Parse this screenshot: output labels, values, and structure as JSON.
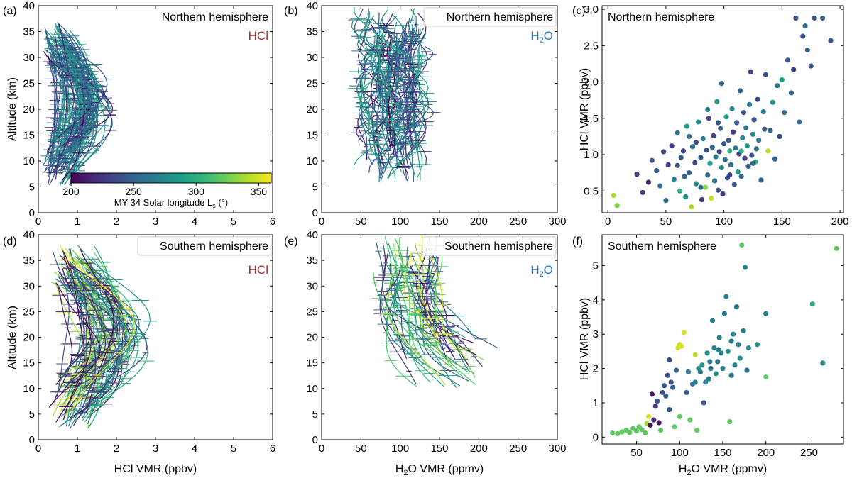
{
  "figure": {
    "colorbar": {
      "label": "MY 34 Solar longitude L",
      "label_sub": "s",
      "label_unit": "(°)",
      "ticks": [
        200,
        250,
        300,
        350
      ],
      "range": [
        200,
        360
      ],
      "colormap": "viridis",
      "stops": [
        "#440154",
        "#482878",
        "#3e4989",
        "#31688e",
        "#26828e",
        "#1f9e89",
        "#35b779",
        "#6ece58",
        "#b5de2b",
        "#fde725"
      ]
    },
    "colors": {
      "hcl_label": "#a52a2a",
      "h2o_label": "#1f77b4"
    }
  },
  "chart_data": [
    {
      "id": "a",
      "type": "line",
      "panel_label": "(a)",
      "region": "Northern hemisphere",
      "species": "HCl",
      "xlabel": "",
      "ylabel": "Altitude (km)",
      "xlim": [
        0,
        6
      ],
      "ylim": [
        0,
        40
      ],
      "xticks": [
        0,
        1,
        2,
        3,
        4,
        5,
        6
      ],
      "yticks": [
        0,
        5,
        10,
        15,
        20,
        25,
        30,
        35,
        40
      ],
      "gen": {
        "n": 70,
        "xc": 1.5,
        "xspread": 1.9,
        "ymin": 5,
        "ymax": 37,
        "shape": "bulge",
        "ls": [
          200,
          300
        ],
        "seed": 11
      }
    },
    {
      "id": "b",
      "type": "line",
      "panel_label": "(b)",
      "region": "Northern hemisphere",
      "species": "H2O",
      "xlabel": "",
      "ylabel": "",
      "xlim": [
        0,
        300
      ],
      "ylim": [
        0,
        40
      ],
      "xticks": [
        0,
        50,
        100,
        150,
        200,
        250,
        300
      ],
      "yticks": [
        0,
        5,
        10,
        15,
        20,
        25,
        30,
        35,
        40
      ],
      "gen": {
        "n": 60,
        "xc": 90,
        "xspread": 75,
        "ymin": 6,
        "ymax": 40,
        "shape": "wiggle",
        "ls": [
          200,
          300
        ],
        "seed": 23
      }
    },
    {
      "id": "c",
      "type": "scatter",
      "panel_label": "(c)",
      "region": "Northern hemisphere",
      "xlabel": "",
      "ylabel": "HCl VMR (ppbv)",
      "xlim": [
        -5,
        203
      ],
      "ylim": [
        0.2,
        3.05
      ],
      "xticks": [
        0,
        50,
        100,
        150,
        200
      ],
      "yticks": [
        0.5,
        1.0,
        1.5,
        2.0,
        2.5,
        3.0
      ],
      "points": [
        [
          5,
          0.44,
          340
        ],
        [
          8,
          0.3,
          330
        ],
        [
          25,
          0.73,
          225
        ],
        [
          30,
          0.48,
          230
        ],
        [
          35,
          0.62,
          215
        ],
        [
          38,
          0.92,
          240
        ],
        [
          42,
          0.78,
          245
        ],
        [
          45,
          0.57,
          260
        ],
        [
          48,
          1.04,
          235
        ],
        [
          50,
          0.37,
          255
        ],
        [
          52,
          0.86,
          225
        ],
        [
          55,
          1.12,
          230
        ],
        [
          57,
          0.66,
          270
        ],
        [
          60,
          1.3,
          260
        ],
        [
          62,
          0.5,
          300
        ],
        [
          63,
          0.96,
          245
        ],
        [
          65,
          1.05,
          230
        ],
        [
          67,
          0.42,
          280
        ],
        [
          68,
          1.39,
          290
        ],
        [
          70,
          0.75,
          250
        ],
        [
          72,
          0.28,
          340
        ],
        [
          73,
          1.11,
          260
        ],
        [
          75,
          0.89,
          235
        ],
        [
          76,
          0.6,
          275
        ],
        [
          78,
          1.45,
          280
        ],
        [
          80,
          0.96,
          245
        ],
        [
          81,
          0.38,
          225
        ],
        [
          82,
          1.22,
          265
        ],
        [
          84,
          0.55,
          330
        ],
        [
          85,
          1.06,
          240
        ],
        [
          86,
          0.72,
          255
        ],
        [
          87,
          1.5,
          230
        ],
        [
          88,
          0.88,
          285
        ],
        [
          89,
          0.4,
          345
        ],
        [
          90,
          1.1,
          250
        ],
        [
          91,
          1.26,
          235
        ],
        [
          92,
          0.64,
          260
        ],
        [
          93,
          0.97,
          270
        ],
        [
          94,
          1.73,
          285
        ],
        [
          95,
          0.51,
          240
        ],
        [
          96,
          1.04,
          230
        ],
        [
          97,
          1.36,
          250
        ],
        [
          98,
          0.82,
          275
        ],
        [
          99,
          0.46,
          225
        ],
        [
          100,
          1.15,
          245
        ],
        [
          101,
          0.93,
          260
        ],
        [
          102,
          1.52,
          290
        ],
        [
          103,
          0.68,
          235
        ],
        [
          104,
          1.2,
          240
        ],
        [
          105,
          1.05,
          300
        ],
        [
          106,
          0.86,
          255
        ],
        [
          107,
          1.63,
          270
        ],
        [
          108,
          1.31,
          230
        ],
        [
          109,
          0.59,
          245
        ],
        [
          110,
          1.09,
          265
        ],
        [
          111,
          1.44,
          240
        ],
        [
          112,
          0.76,
          280
        ],
        [
          113,
          1.01,
          235
        ],
        [
          114,
          1.88,
          250
        ],
        [
          115,
          0.7,
          255
        ],
        [
          116,
          1.23,
          270
        ],
        [
          117,
          1.58,
          240
        ],
        [
          118,
          0.95,
          230
        ],
        [
          119,
          1.37,
          260
        ],
        [
          120,
          1.12,
          285
        ],
        [
          121,
          0.84,
          250
        ],
        [
          122,
          1.69,
          265
        ],
        [
          123,
          2.14,
          230
        ],
        [
          124,
          0.99,
          245
        ],
        [
          125,
          1.28,
          275
        ],
        [
          126,
          1.48,
          240
        ],
        [
          127,
          0.9,
          300
        ],
        [
          128,
          1.08,
          255
        ],
        [
          129,
          1.76,
          235
        ],
        [
          130,
          1.2,
          260
        ],
        [
          132,
          0.65,
          250
        ],
        [
          134,
          1.59,
          270
        ],
        [
          136,
          2.1,
          240
        ],
        [
          138,
          1.05,
          345
        ],
        [
          140,
          1.33,
          255
        ],
        [
          142,
          1.72,
          280
        ],
        [
          144,
          0.94,
          250
        ],
        [
          146,
          1.95,
          265
        ],
        [
          148,
          1.25,
          240
        ],
        [
          150,
          2.03,
          290
        ],
        [
          152,
          1.58,
          255
        ],
        [
          155,
          2.3,
          245
        ],
        [
          158,
          1.85,
          250
        ],
        [
          160,
          2.17,
          230
        ],
        [
          162,
          2.88,
          240
        ],
        [
          165,
          1.45,
          260
        ],
        [
          168,
          2.63,
          245
        ],
        [
          170,
          2.77,
          255
        ],
        [
          172,
          2.44,
          250
        ],
        [
          175,
          2.22,
          245
        ],
        [
          178,
          2.88,
          240
        ],
        [
          185,
          2.88,
          250
        ],
        [
          192,
          2.57,
          245
        ],
        [
          60,
          0.85,
          240
        ],
        [
          70,
          1.25,
          255
        ],
        [
          80,
          0.55,
          260
        ],
        [
          95,
          1.44,
          240
        ],
        [
          105,
          0.72,
          235
        ],
        [
          115,
          1.05,
          300
        ],
        [
          125,
          0.88,
          250
        ],
        [
          135,
          1.35,
          245
        ],
        [
          98,
          1.98,
          250
        ],
        [
          86,
          1.62,
          270
        ],
        [
          76,
          1.17,
          235
        ],
        [
          66,
          0.7,
          250
        ]
      ]
    },
    {
      "id": "d",
      "type": "line",
      "panel_label": "(d)",
      "region": "Southern hemisphere",
      "species": "HCl",
      "xlabel": "HCl VMR (ppbv)",
      "ylabel": "Altitude (km)",
      "xlim": [
        0,
        6
      ],
      "ylim": [
        0,
        40
      ],
      "xticks": [
        0,
        1,
        2,
        3,
        4,
        5,
        6
      ],
      "yticks": [
        0,
        5,
        10,
        15,
        20,
        25,
        30,
        35,
        40
      ],
      "gen": {
        "n": 65,
        "xc": 2.4,
        "xspread": 2.6,
        "ymin": 2,
        "ymax": 38,
        "shape": "bulge",
        "ls": [
          200,
          360
        ],
        "seed": 37
      }
    },
    {
      "id": "e",
      "type": "line",
      "panel_label": "(e)",
      "region": "Southern hemisphere",
      "species": "H2O",
      "xlabel": "H2O VMR (ppmv)",
      "ylabel": "",
      "xlim": [
        0,
        300
      ],
      "ylim": [
        0,
        40
      ],
      "xticks": [
        0,
        50,
        100,
        150,
        200,
        250,
        300
      ],
      "yticks": [
        0,
        5,
        10,
        15,
        20,
        25,
        30,
        35,
        40
      ],
      "gen": {
        "n": 40,
        "xc": 110,
        "xspread": 80,
        "ymin": 10,
        "ymax": 40,
        "shape": "flare",
        "ls": [
          200,
          360
        ],
        "seed": 51
      }
    },
    {
      "id": "f",
      "type": "scatter",
      "panel_label": "(f)",
      "region": "Southern hemisphere",
      "xlabel": "H2O VMR (ppmv)",
      "ylabel": "HCl VMR (ppbv)",
      "xlim": [
        10,
        290
      ],
      "ylim": [
        -0.2,
        5.9
      ],
      "xticks": [
        50,
        100,
        150,
        200,
        250
      ],
      "yticks": [
        0,
        1,
        2,
        3,
        4,
        5
      ],
      "points": [
        [
          22,
          0.12,
          320
        ],
        [
          28,
          0.1,
          320
        ],
        [
          33,
          0.15,
          320
        ],
        [
          38,
          0.2,
          320
        ],
        [
          42,
          0.13,
          320
        ],
        [
          46,
          0.25,
          320
        ],
        [
          50,
          0.18,
          320
        ],
        [
          53,
          0.3,
          320
        ],
        [
          56,
          0.22,
          320
        ],
        [
          60,
          0.12,
          320
        ],
        [
          62,
          0.4,
          340
        ],
        [
          64,
          0.6,
          350
        ],
        [
          66,
          0.35,
          210
        ],
        [
          68,
          1.25,
          210
        ],
        [
          70,
          0.5,
          220
        ],
        [
          72,
          0.9,
          225
        ],
        [
          74,
          1.05,
          240
        ],
        [
          76,
          0.42,
          210
        ],
        [
          78,
          0.2,
          320
        ],
        [
          80,
          1.3,
          240
        ],
        [
          82,
          1.5,
          245
        ],
        [
          84,
          1.2,
          250
        ],
        [
          86,
          1.8,
          240
        ],
        [
          88,
          2.25,
          240
        ],
        [
          90,
          1.6,
          235
        ],
        [
          92,
          1.45,
          250
        ],
        [
          94,
          0.3,
          320
        ],
        [
          96,
          1.95,
          255
        ],
        [
          98,
          2.6,
          350
        ],
        [
          100,
          2.7,
          345
        ],
        [
          102,
          2.65,
          350
        ],
        [
          105,
          3.05,
          350
        ],
        [
          108,
          1.3,
          245
        ],
        [
          112,
          0.5,
          320
        ],
        [
          115,
          1.55,
          255
        ],
        [
          118,
          2.4,
          345
        ],
        [
          120,
          0.2,
          320
        ],
        [
          124,
          1.9,
          265
        ],
        [
          126,
          2.1,
          280
        ],
        [
          128,
          1.0,
          240
        ],
        [
          130,
          1.6,
          270
        ],
        [
          132,
          2.45,
          280
        ],
        [
          134,
          1.7,
          265
        ],
        [
          136,
          2.0,
          260
        ],
        [
          138,
          3.4,
          265
        ],
        [
          140,
          2.6,
          270
        ],
        [
          142,
          1.85,
          280
        ],
        [
          144,
          2.2,
          265
        ],
        [
          146,
          2.9,
          270
        ],
        [
          148,
          2.45,
          265
        ],
        [
          150,
          2.0,
          270
        ],
        [
          152,
          3.6,
          265
        ],
        [
          154,
          4.1,
          270
        ],
        [
          156,
          2.5,
          280
        ],
        [
          158,
          0.45,
          320
        ],
        [
          160,
          2.8,
          265
        ],
        [
          162,
          3.0,
          270
        ],
        [
          164,
          2.1,
          265
        ],
        [
          166,
          3.8,
          270
        ],
        [
          168,
          2.7,
          265
        ],
        [
          170,
          2.3,
          280
        ],
        [
          172,
          5.6,
          320
        ],
        [
          174,
          3.1,
          270
        ],
        [
          176,
          4.95,
          270
        ],
        [
          178,
          1.95,
          265
        ],
        [
          180,
          2.6,
          270
        ],
        [
          190,
          2.7,
          280
        ],
        [
          200,
          3.6,
          270
        ],
        [
          200,
          1.75,
          320
        ],
        [
          254,
          3.88,
          300
        ],
        [
          266,
          2.16,
          280
        ],
        [
          282,
          5.5,
          320
        ],
        [
          110,
          1.9,
          265
        ],
        [
          118,
          1.6,
          270
        ],
        [
          135,
          2.2,
          265
        ],
        [
          145,
          2.55,
          270
        ],
        [
          160,
          1.8,
          265
        ],
        [
          122,
          2.0,
          280
        ],
        [
          100,
          0.6,
          320
        ],
        [
          88,
          0.8,
          240
        ]
      ]
    }
  ]
}
